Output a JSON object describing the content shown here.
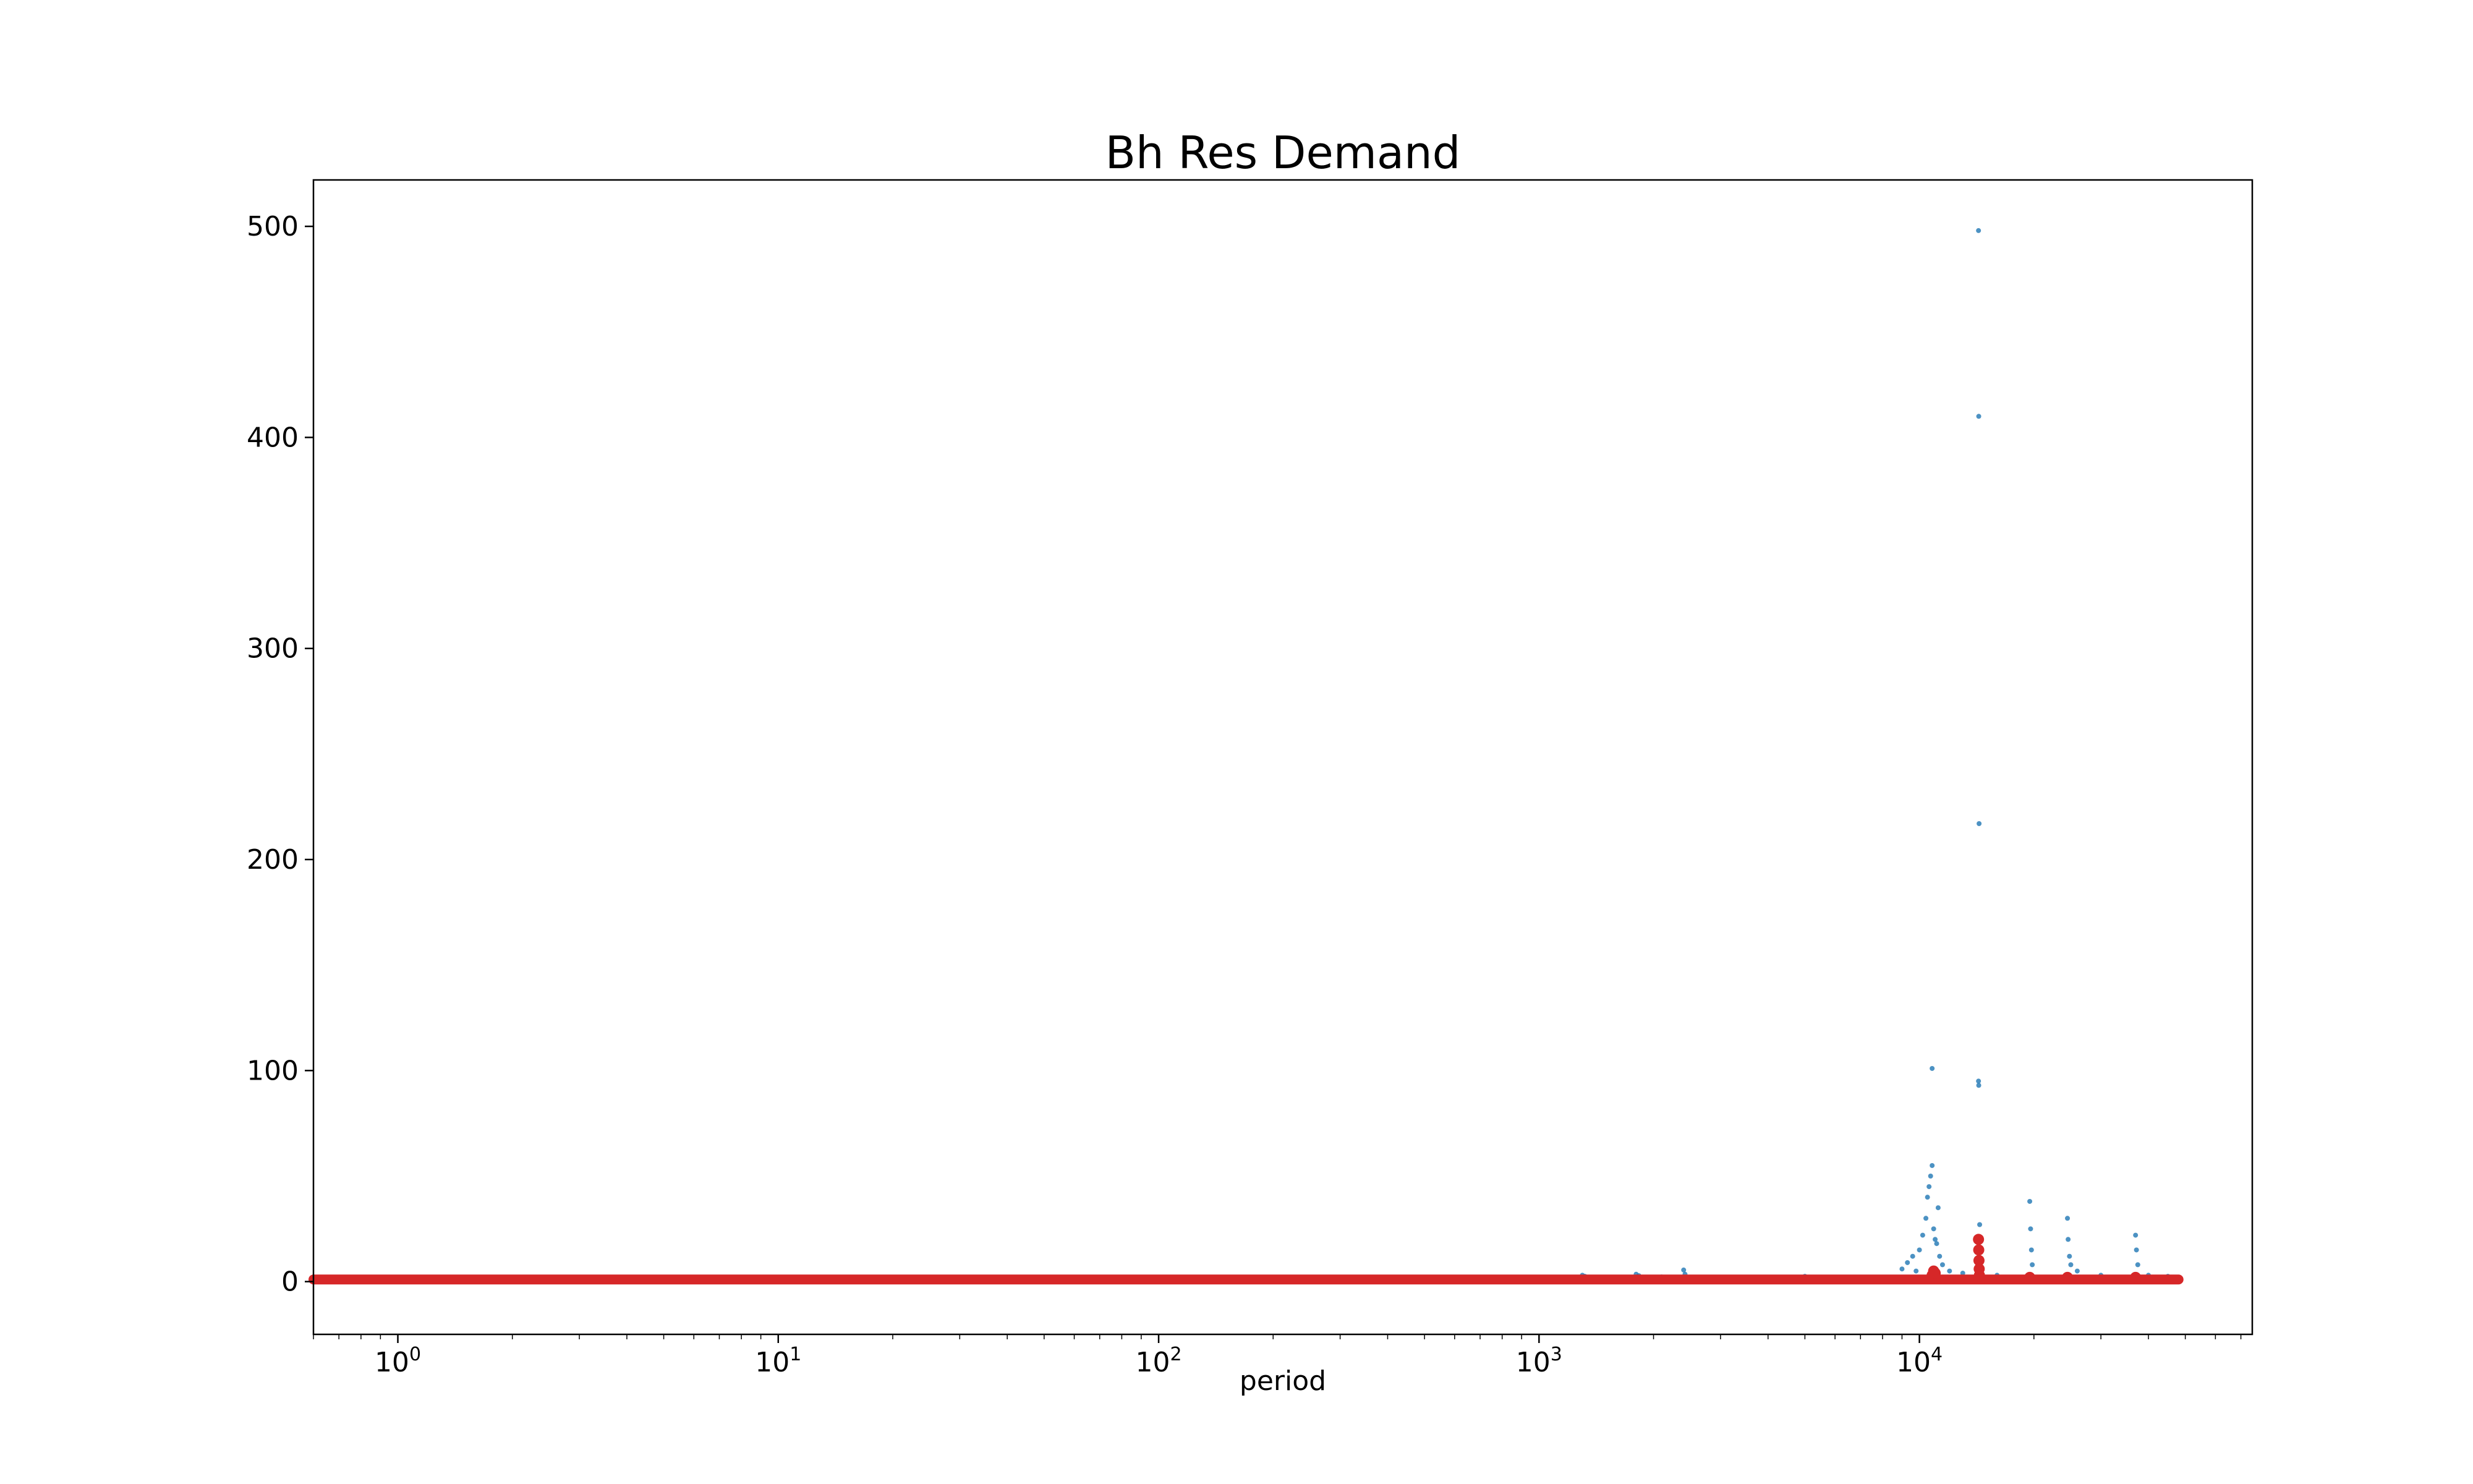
{
  "chart_data": {
    "type": "scatter",
    "title": "Bh Res Demand",
    "xlabel": "period",
    "ylabel": "",
    "xscale": "log",
    "xlim": [
      0.6,
      75000
    ],
    "ylim": [
      -25,
      522
    ],
    "grid": false,
    "x_ticks": [
      {
        "value": 1,
        "base": "10",
        "exp": "0"
      },
      {
        "value": 10,
        "base": "10",
        "exp": "1"
      },
      {
        "value": 100,
        "base": "10",
        "exp": "2"
      },
      {
        "value": 1000,
        "base": "10",
        "exp": "3"
      },
      {
        "value": 10000,
        "base": "10",
        "exp": "4"
      }
    ],
    "y_ticks": [
      {
        "value": 0,
        "label": "0"
      },
      {
        "value": 100,
        "label": "100"
      },
      {
        "value": 200,
        "label": "200"
      },
      {
        "value": 300,
        "label": "300"
      },
      {
        "value": 400,
        "label": "400"
      },
      {
        "value": 500,
        "label": "500"
      }
    ],
    "series": [
      {
        "color": "#1f77b4",
        "marker": "dot",
        "points": [
          [
            950,
            1.5
          ],
          [
            1300,
            3.0
          ],
          [
            1320,
            2.5
          ],
          [
            1500,
            1.8
          ],
          [
            1800,
            3.5
          ],
          [
            1830,
            2.8
          ],
          [
            2100,
            2.2
          ],
          [
            2400,
            5.5
          ],
          [
            2420,
            3.5
          ],
          [
            3000,
            1.5
          ],
          [
            5000,
            2.5
          ],
          [
            9000,
            6
          ],
          [
            9300,
            9
          ],
          [
            9600,
            12
          ],
          [
            9800,
            5
          ],
          [
            10000,
            15
          ],
          [
            10200,
            22
          ],
          [
            10400,
            30
          ],
          [
            10500,
            40
          ],
          [
            10600,
            45
          ],
          [
            10700,
            50
          ],
          [
            10800,
            55
          ],
          [
            10800,
            101
          ],
          [
            10900,
            25
          ],
          [
            11000,
            20
          ],
          [
            11100,
            18
          ],
          [
            11200,
            35
          ],
          [
            11300,
            12
          ],
          [
            11500,
            8
          ],
          [
            12000,
            5
          ],
          [
            13000,
            4
          ],
          [
            14300,
            498
          ],
          [
            14320,
            410
          ],
          [
            14350,
            217
          ],
          [
            14300,
            95
          ],
          [
            14320,
            93
          ],
          [
            14400,
            27
          ],
          [
            14450,
            15
          ],
          [
            14600,
            10
          ],
          [
            16000,
            3
          ],
          [
            19500,
            38
          ],
          [
            19600,
            25
          ],
          [
            19700,
            15
          ],
          [
            19800,
            8
          ],
          [
            24500,
            30
          ],
          [
            24600,
            20
          ],
          [
            24800,
            12
          ],
          [
            25000,
            8
          ],
          [
            26000,
            5
          ],
          [
            30000,
            3
          ],
          [
            37000,
            22
          ],
          [
            37200,
            15
          ],
          [
            37500,
            8
          ],
          [
            40000,
            3
          ],
          [
            45000,
            2.5
          ]
        ]
      },
      {
        "color": "#d62728",
        "marker": "thick",
        "baseline": [
          [
            0.6,
            1
          ],
          [
            48000,
            1
          ]
        ],
        "points": [
          [
            10800,
            3
          ],
          [
            10900,
            5
          ],
          [
            11000,
            4
          ],
          [
            14300,
            20
          ],
          [
            14320,
            15
          ],
          [
            14340,
            10
          ],
          [
            14360,
            6
          ],
          [
            14380,
            3
          ],
          [
            19500,
            2
          ],
          [
            24500,
            2
          ],
          [
            37000,
            2
          ]
        ]
      }
    ]
  }
}
